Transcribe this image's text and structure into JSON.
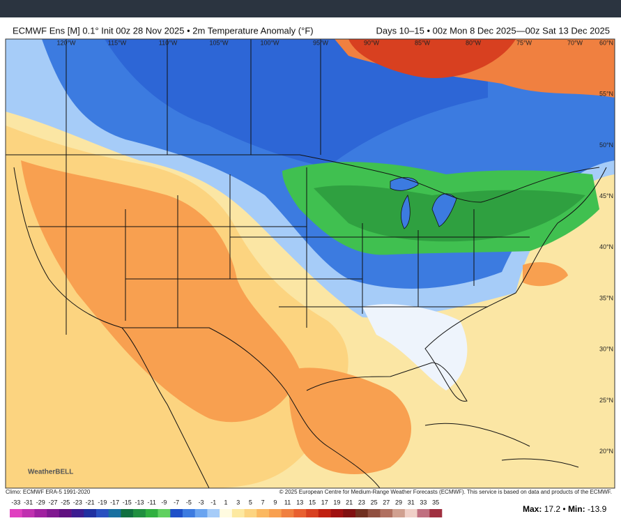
{
  "header": {
    "title_left": "ECMWF Ens [M] 0.1° Init 00z 28 Nov 2025 • 2m Temperature Anomaly (°F)",
    "title_right": "Days 10–15 • 00z Mon 8 Dec 2025—00z Sat 13 Dec 2025"
  },
  "map": {
    "longitude_labels": [
      "120°W",
      "115°W",
      "110°W",
      "105°W",
      "100°W",
      "95°W",
      "90°W",
      "85°W",
      "80°W",
      "75°W",
      "70°W"
    ],
    "latitude_labels": [
      "60°N",
      "55°N",
      "50°N",
      "45°N",
      "40°N",
      "35°N",
      "30°N",
      "25°N",
      "20°N"
    ],
    "logo": "WeatherBELL"
  },
  "footer": {
    "climo": "Climo: ECMWF ERA-5 1991-2020",
    "copyright": "© 2025 European Centre for Medium-Range Weather Forecasts (ECMWF). This service is based on data and products of the ECMWF."
  },
  "colorbar": {
    "labels": [
      -33,
      -31,
      -29,
      -27,
      -25,
      -23,
      -21,
      -19,
      -17,
      -15,
      -13,
      -11,
      -9,
      -7,
      -5,
      -3,
      -1,
      1,
      3,
      5,
      7,
      9,
      11,
      13,
      15,
      17,
      19,
      21,
      23,
      25,
      27,
      29,
      31,
      33,
      35
    ],
    "colors": [
      "#e040c0",
      "#c030b0",
      "#a020a0",
      "#801890",
      "#601080",
      "#3c1c90",
      "#2030a0",
      "#2850c0",
      "#1870a0",
      "#107040",
      "#209040",
      "#30b040",
      "#60d060",
      "#1e50c8",
      "#3c7be0",
      "#6aa4f0",
      "#a6ccf8",
      "#fffbe0",
      "#fde9a0",
      "#fcd480",
      "#fbb860",
      "#f8a050",
      "#f08040",
      "#e86030",
      "#d84020",
      "#c02010",
      "#a01010",
      "#801010",
      "#703020",
      "#905040",
      "#b07060",
      "#d0a090",
      "#f0d0c8",
      "#c07080",
      "#a03040"
    ]
  },
  "stats": {
    "max_label": "Max:",
    "max": 17.2,
    "separator": "•",
    "min_label": "Min:",
    "min": -13.9
  }
}
